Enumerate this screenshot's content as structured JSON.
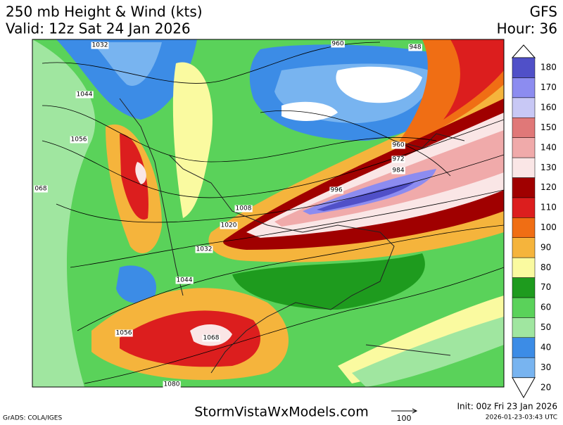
{
  "header": {
    "title": "250 mb Height & Wind (kts)",
    "valid": "Valid: 12z Sat 24 Jan 2026",
    "model": "GFS",
    "hour": "Hour: 36"
  },
  "colorbar": {
    "levels": [
      20,
      30,
      40,
      50,
      60,
      70,
      80,
      90,
      100,
      110,
      120,
      130,
      140,
      150,
      160,
      170,
      180
    ],
    "colors": [
      "#ffffff",
      "#78b4f0",
      "#3c8ce6",
      "#a0e6a0",
      "#5ad25a",
      "#1e9b1e",
      "#fafaa0",
      "#f5b43c",
      "#f06e14",
      "#dc1e1e",
      "#a00000",
      "#fae6e6",
      "#f0aaaa",
      "#e07878",
      "#c8c8f5",
      "#8c8cf0",
      "#5050c8"
    ]
  },
  "contour_labels": [
    "1032",
    "1044",
    "1056",
    "068",
    "1044",
    "1032",
    "1020",
    "1008",
    "996",
    "984",
    "972",
    "960",
    "948",
    "960",
    "1056",
    "1068",
    "1080"
  ],
  "footer": {
    "credit": "GrADS: COLA/IGES",
    "site": "StormVistaWxModels.com",
    "vector_scale": "100",
    "init": "Init: 00z Fri 23 Jan 2026",
    "stamp": "2026-01-23-03:43 UTC"
  }
}
